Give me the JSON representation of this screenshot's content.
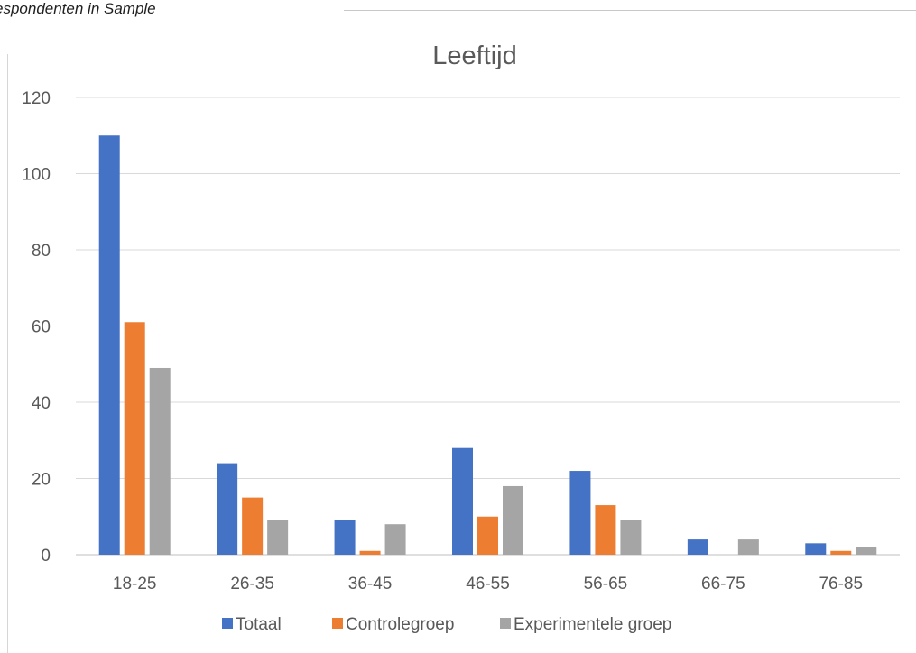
{
  "caption": "espondenten in Sample",
  "chart_data": {
    "type": "bar",
    "title": "Leeftijd",
    "xlabel": "",
    "ylabel": "",
    "categories": [
      "18-25",
      "26-35",
      "36-45",
      "46-55",
      "56-65",
      "66-75",
      "76-85"
    ],
    "series": [
      {
        "name": "Totaal",
        "values": [
          110,
          24,
          9,
          28,
          22,
          4,
          3
        ],
        "color": "#4472c4"
      },
      {
        "name": "Controlegroep",
        "values": [
          61,
          15,
          1,
          10,
          13,
          0,
          1
        ],
        "color": "#ed7d31"
      },
      {
        "name": "Experimentele groep",
        "values": [
          49,
          9,
          8,
          18,
          9,
          4,
          2
        ],
        "color": "#a5a5a5"
      }
    ],
    "ylim": [
      0,
      120
    ],
    "yticks": [
      0,
      20,
      40,
      60,
      80,
      100,
      120
    ],
    "grid": true,
    "legend": "bottom"
  }
}
